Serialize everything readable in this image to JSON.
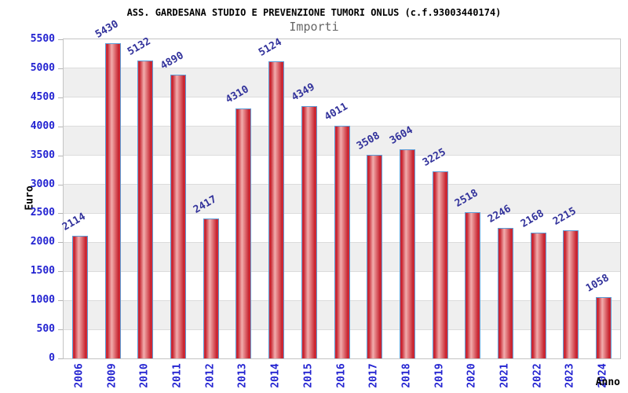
{
  "header": {
    "title": "ASS. GARDESANA STUDIO E PREVENZIONE TUMORI ONLUS (c.f.93003440174)",
    "subtitle": "Importi"
  },
  "chart_data": {
    "type": "bar",
    "title": "Importi",
    "categories": [
      "2006",
      "2009",
      "2010",
      "2011",
      "2012",
      "2013",
      "2014",
      "2015",
      "2016",
      "2017",
      "2018",
      "2019",
      "2020",
      "2021",
      "2022",
      "2023",
      "2024"
    ],
    "values": [
      2114,
      5430,
      5132,
      4890,
      2417,
      4310,
      5124,
      4349,
      4011,
      3508,
      3604,
      3225,
      2518,
      2246,
      2168,
      2215,
      1058
    ],
    "xlabel": "Anno",
    "ylabel": "Euro",
    "ylim": [
      0,
      5500
    ],
    "ytick_step": 500,
    "yticks": [
      0,
      500,
      1000,
      1500,
      2000,
      2500,
      3000,
      3500,
      4000,
      4500,
      5000,
      5500
    ],
    "legend": "none",
    "grid": "horizontal gridlines with alternating background bands",
    "colors": {
      "band": "#efefef",
      "band_alt": "#ffffff",
      "gridline": "#dcdcdc",
      "plot_border": "#c4c4c4",
      "bar_edge": "#c51f2b",
      "bar_mid": "#f2adad",
      "bar_border": "#5b9bd5",
      "axis_tick_label": "#2323d1",
      "value_label": "#32329b",
      "subtitle_text": "#666666",
      "title_text": "#000000"
    }
  }
}
